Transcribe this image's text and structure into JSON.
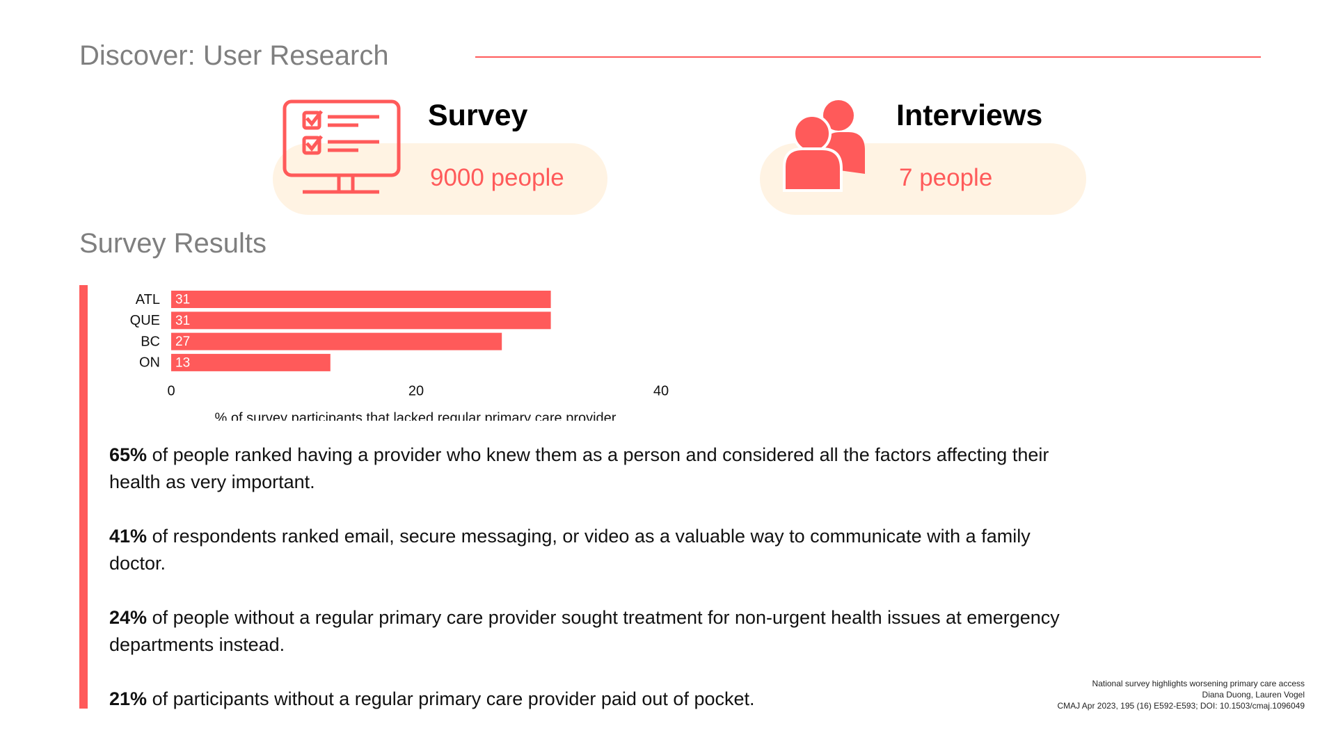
{
  "header": {
    "title": "Discover: User Research"
  },
  "survey": {
    "title": "Survey",
    "count": "9000 people"
  },
  "interviews": {
    "title": "Interviews",
    "count": "7 people"
  },
  "section_title": "Survey Results",
  "chart_data": {
    "type": "bar",
    "orientation": "horizontal",
    "categories": [
      "ATL",
      "QUE",
      "BC",
      "ON"
    ],
    "values": [
      31,
      31,
      27,
      13
    ],
    "color": "#ff5a5a",
    "xlim": [
      0,
      40
    ],
    "xticks": [
      0,
      20,
      40
    ],
    "xlabel": "% of survey participants that lacked regular primary care provider"
  },
  "findings": [
    {
      "highlight": "65%",
      "text": "of people ranked having a provider who knew them as a person and considered all the factors affecting their health as very important."
    },
    {
      "highlight": "41%",
      "text": "of respondents ranked email, secure messaging, or video as a valuable way to communicate with a family doctor."
    },
    {
      "highlight": "24%",
      "text": "of people without a regular primary care provider sought treatment for non-urgent health issues at emergency departments instead."
    },
    {
      "highlight": "21%",
      "text": "of participants without a regular primary care provider paid out of pocket."
    }
  ],
  "citation": {
    "lines": [
      "National survey highlights worsening primary care access",
      "Diana Duong, Lauren Vogel",
      "CMAJ Apr 2023, 195 (16) E592-E593; DOI: 10.1503/cmaj.1096049"
    ]
  }
}
